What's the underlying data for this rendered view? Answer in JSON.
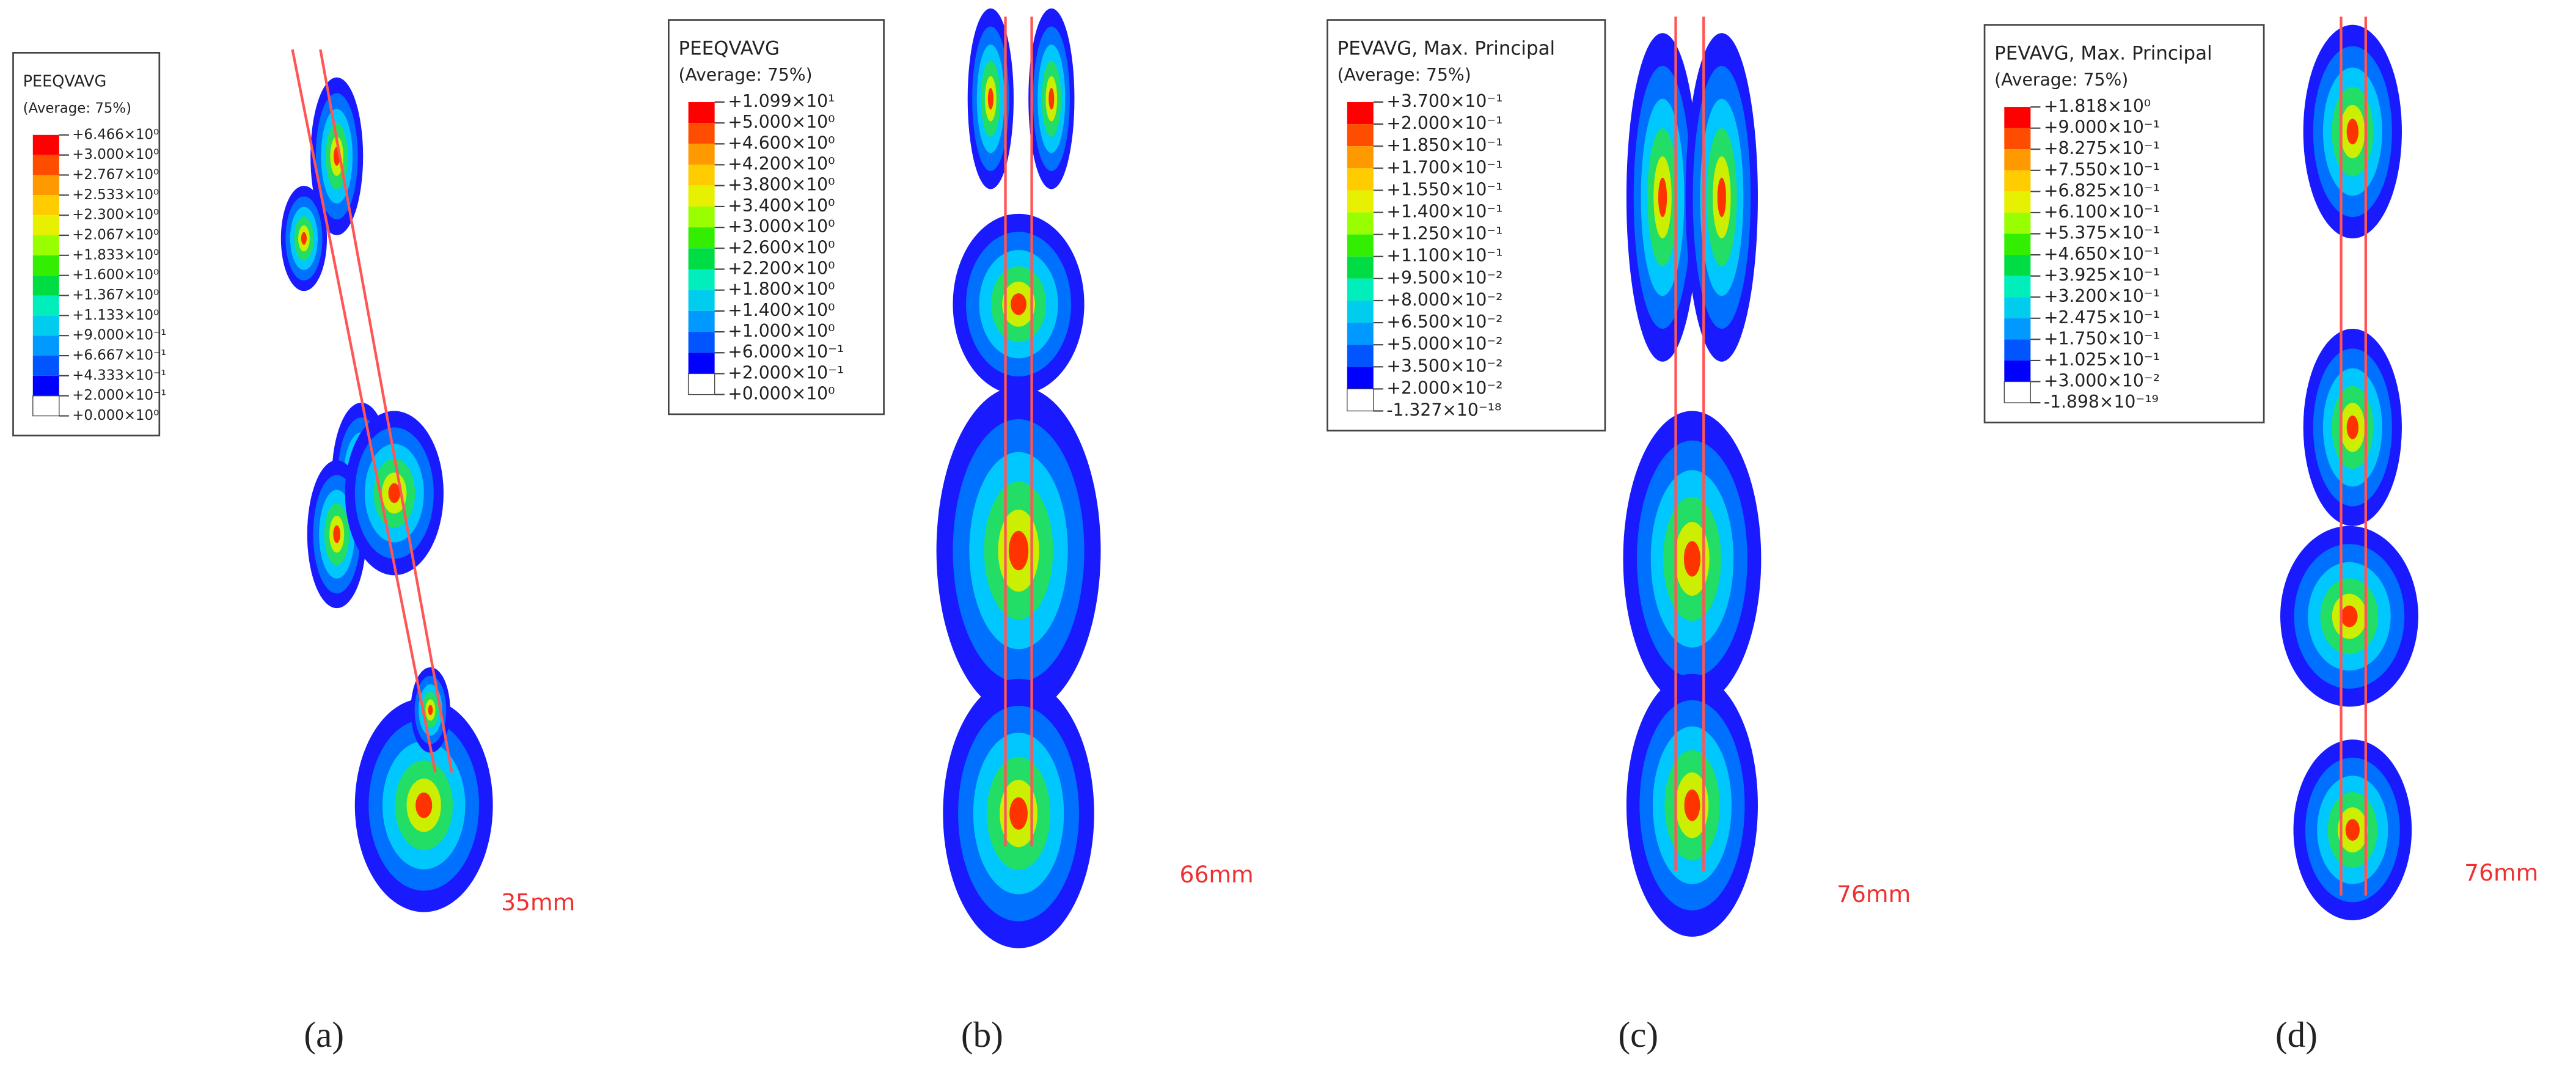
{
  "panels": [
    {
      "legend": {
        "title": "PEEQVAVG",
        "average": "(Average: 75%)",
        "labels": [
          "+6.466×10⁰",
          "+3.000×10⁰",
          "+2.767×10⁰",
          "+2.533×10⁰",
          "+2.300×10⁰",
          "+2.067×10⁰",
          "+1.833×10⁰",
          "+1.600×10⁰",
          "+1.367×10⁰",
          "+1.133×10⁰",
          "+9.000×10⁻¹",
          "+6.667×10⁻¹",
          "+4.333×10⁻¹",
          "+2.000×10⁻¹",
          "+0.000×10⁰"
        ]
      },
      "dimension": "35mm",
      "caption": "(a)"
    },
    {
      "legend": {
        "title": "PEEQVAVG",
        "average": "(Average: 75%)",
        "labels": [
          "+1.099×10¹",
          "+5.000×10⁰",
          "+4.600×10⁰",
          "+4.200×10⁰",
          "+3.800×10⁰",
          "+3.400×10⁰",
          "+3.000×10⁰",
          "+2.600×10⁰",
          "+2.200×10⁰",
          "+1.800×10⁰",
          "+1.400×10⁰",
          "+1.000×10⁰",
          "+6.000×10⁻¹",
          "+2.000×10⁻¹",
          "+0.000×10⁰"
        ]
      },
      "dimension": "66mm",
      "caption": "(b)"
    },
    {
      "legend": {
        "title": "PEVAVG, Max. Principal",
        "average": "(Average: 75%)",
        "labels": [
          "+3.700×10⁻¹",
          "+2.000×10⁻¹",
          "+1.850×10⁻¹",
          "+1.700×10⁻¹",
          "+1.550×10⁻¹",
          "+1.400×10⁻¹",
          "+1.250×10⁻¹",
          "+1.100×10⁻¹",
          "+9.500×10⁻²",
          "+8.000×10⁻²",
          "+6.500×10⁻²",
          "+5.000×10⁻²",
          "+3.500×10⁻²",
          "+2.000×10⁻²",
          "-1.327×10⁻¹⁸"
        ]
      },
      "dimension": "76mm",
      "caption": "(c)"
    },
    {
      "legend": {
        "title": "PEVAVG, Max. Principal",
        "average": "(Average: 75%)",
        "labels": [
          "+1.818×10⁰",
          "+9.000×10⁻¹",
          "+8.275×10⁻¹",
          "+7.550×10⁻¹",
          "+6.825×10⁻¹",
          "+6.100×10⁻¹",
          "+5.375×10⁻¹",
          "+4.650×10⁻¹",
          "+3.925×10⁻¹",
          "+3.200×10⁻¹",
          "+2.475×10⁻¹",
          "+1.750×10⁻¹",
          "+1.025×10⁻¹",
          "+3.000×10⁻²",
          "-1.898×10⁻¹⁹"
        ]
      },
      "dimension": "76mm",
      "caption": "(d)"
    }
  ]
}
